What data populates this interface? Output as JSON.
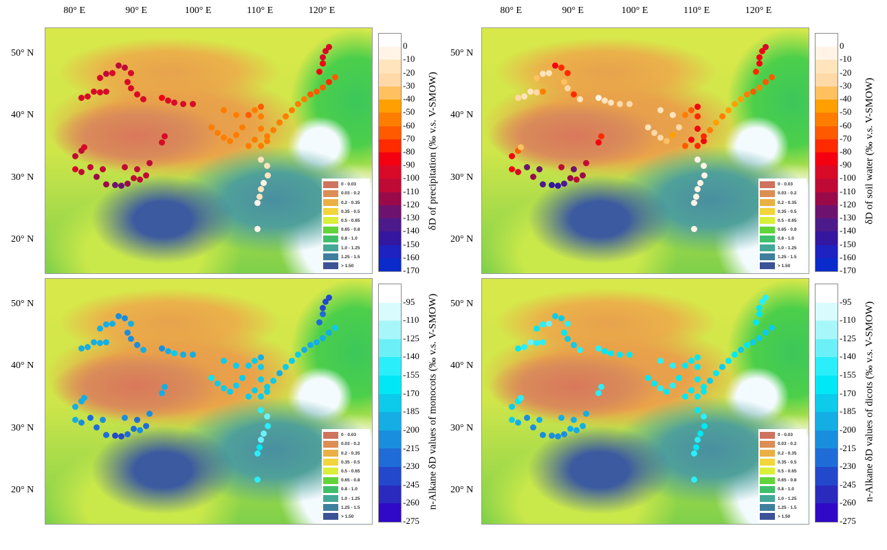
{
  "axes": {
    "lon_labels": [
      "80° E",
      "90° E",
      "100° E",
      "110° E",
      "120° E"
    ],
    "lon_values": [
      80,
      90,
      100,
      110,
      120
    ],
    "lat_labels": [
      "50° N",
      "40° N",
      "30° N",
      "20° N"
    ],
    "lat_values": [
      50,
      40,
      30,
      20
    ]
  },
  "legend": {
    "items": [
      "0 - 0.03",
      "0.03 - 0.2",
      "0.2 - 0.35",
      "0.35 - 0.5",
      "0.5 - 0.65",
      "0.65 - 0.8",
      "0.8 - 1.0",
      "1.0 - 1.25",
      "1.25 - 1.5",
      "> 1.50"
    ],
    "colors": [
      "#cf735e",
      "#dc8e55",
      "#eab044",
      "#f3d43a",
      "#d9ef38",
      "#62d43a",
      "#3fbf6a",
      "#44a896",
      "#3f7f9d",
      "#3b5296"
    ]
  },
  "panels": [
    {
      "colorbar_label": "δD of precipitation (‰ v.s. V-SMOW)",
      "ticks": [
        "0",
        "-10",
        "-20",
        "-30",
        "-40",
        "-50",
        "-60",
        "-70",
        "-80",
        "-90",
        "-100",
        "-110",
        "-120",
        "-130",
        "-140",
        "-150",
        "-160",
        "-170"
      ],
      "min": -170,
      "max": 0,
      "palette": [
        "#ffffff",
        "#fff4e6",
        "#ffe4bc",
        "#ffd9a8",
        "#ffc060",
        "#ffa000",
        "#ff7d00",
        "#ff5a00",
        "#ff2a00",
        "#f50010",
        "#d80a28",
        "#c00a36",
        "#9a0a4a",
        "#6e1270",
        "#4c1a8a",
        "#3416a0",
        "#1d22c0",
        "#0a2acc"
      ]
    },
    {
      "colorbar_label": "δD of soil water (‰ v.s. V-SMOW)",
      "ticks": [
        "0",
        "-10",
        "-20",
        "-30",
        "-40",
        "-50",
        "-60",
        "-70",
        "-80",
        "-90",
        "-100",
        "-110",
        "-120",
        "-130",
        "-140",
        "-150",
        "-160",
        "-170"
      ],
      "min": -170,
      "max": 0,
      "palette": [
        "#ffffff",
        "#fff4e6",
        "#ffe4bc",
        "#ffd9a8",
        "#ffc060",
        "#ffa000",
        "#ff7d00",
        "#ff5a00",
        "#ff2a00",
        "#f50010",
        "#d80a28",
        "#c00a36",
        "#9a0a4a",
        "#6e1270",
        "#4c1a8a",
        "#3416a0",
        "#1d22c0",
        "#0a2acc"
      ]
    },
    {
      "colorbar_label": "n-Alkane δD values of monocots (‰ v.s. V-SMOW)",
      "ticks": [
        "-95",
        "-110",
        "-125",
        "-140",
        "-155",
        "-170",
        "-185",
        "-200",
        "-215",
        "-230",
        "-245",
        "-260",
        "-275"
      ],
      "min": -275,
      "max": -95,
      "palette": [
        "#ffffff",
        "#d8fbfd",
        "#a6f6fa",
        "#6cf0f8",
        "#2aeefa",
        "#00e8f6",
        "#0ccbeb",
        "#14aee4",
        "#1a8ede",
        "#1f6cd8",
        "#2448cc",
        "#2a2abf",
        "#3008c8"
      ]
    },
    {
      "colorbar_label": "n-Alkane δD values of dicots (‰ v.s. V-SMOW)",
      "ticks": [
        "-95",
        "-110",
        "-125",
        "-140",
        "-155",
        "-170",
        "-185",
        "-200",
        "-215",
        "-230",
        "-245",
        "-260",
        "-275"
      ],
      "min": -275,
      "max": -95,
      "palette": [
        "#ffffff",
        "#d8fbfd",
        "#a6f6fa",
        "#6cf0f8",
        "#2aeefa",
        "#00e8f6",
        "#0ccbeb",
        "#14aee4",
        "#1a8ede",
        "#1f6cd8",
        "#2448cc",
        "#2a2abf",
        "#3008c8"
      ]
    }
  ],
  "chart_data": {
    "type": "scatter",
    "x_label": "longitude",
    "y_label": "latitude",
    "xlim": [
      75,
      129
    ],
    "ylim": [
      15,
      54
    ],
    "fields": [
      "lon",
      "lat",
      "precipitation_dD",
      "soil_water_dD",
      "monocot_dD",
      "dicot_dD"
    ],
    "sites": [
      [
        81,
        43,
        -95,
        -30,
        -195,
        -170
      ],
      [
        82,
        43.2,
        -95,
        -20,
        -200,
        -150
      ],
      [
        83,
        44,
        -100,
        -15,
        -205,
        -140
      ],
      [
        84,
        43.8,
        -100,
        -25,
        -200,
        -150
      ],
      [
        85,
        44,
        -95,
        -60,
        -205,
        -160
      ],
      [
        84,
        46.2,
        -100,
        -40,
        -195,
        -165
      ],
      [
        85,
        46.8,
        -105,
        -20,
        -195,
        -150
      ],
      [
        86,
        47,
        -100,
        -15,
        -200,
        -145
      ],
      [
        87,
        48.2,
        -110,
        -90,
        -215,
        -185
      ],
      [
        88,
        47.8,
        -105,
        -80,
        -210,
        -180
      ],
      [
        89,
        47,
        -100,
        -75,
        -205,
        -160
      ],
      [
        88.5,
        45.5,
        -100,
        -40,
        -210,
        -175
      ],
      [
        89,
        44.5,
        -95,
        -30,
        -215,
        -180
      ],
      [
        90,
        43.5,
        -100,
        -80,
        -220,
        -190
      ],
      [
        91,
        42.8,
        -95,
        -20,
        -200,
        -160
      ],
      [
        94,
        43,
        -90,
        -10,
        -210,
        -150
      ],
      [
        95,
        42.5,
        -95,
        -15,
        -195,
        -170
      ],
      [
        96,
        42.2,
        -95,
        -20,
        -190,
        -175
      ],
      [
        97.5,
        42,
        -95,
        -25,
        -195,
        -175
      ],
      [
        99,
        42,
        -95,
        -30,
        -195,
        -175
      ],
      [
        80,
        31.5,
        -100,
        -90,
        -205,
        -185
      ],
      [
        81,
        31,
        -105,
        -95,
        -215,
        -200
      ],
      [
        82.5,
        31.8,
        -110,
        -130,
        -225,
        -215
      ],
      [
        83.5,
        30.3,
        -115,
        -120,
        -225,
        -215
      ],
      [
        84.5,
        31.5,
        -110,
        -130,
        -220,
        -205
      ],
      [
        85,
        29,
        -120,
        -140,
        -235,
        -220
      ],
      [
        86.5,
        28.9,
        -125,
        -150,
        -245,
        -215
      ],
      [
        87.5,
        28.8,
        -125,
        -150,
        -240,
        -210
      ],
      [
        88.5,
        29.1,
        -120,
        -140,
        -235,
        -210
      ],
      [
        89.5,
        30,
        -110,
        -120,
        -225,
        -200
      ],
      [
        90.5,
        29.8,
        -105,
        -110,
        -220,
        -200
      ],
      [
        91.5,
        30.5,
        -110,
        -120,
        -225,
        -205
      ],
      [
        92,
        32.5,
        -105,
        -110,
        -215,
        -195
      ],
      [
        90,
        31.5,
        -110,
        -130,
        -225,
        -205
      ],
      [
        88,
        31.8,
        -110,
        -110,
        -220,
        -200
      ],
      [
        80,
        33.6,
        -105,
        -90,
        -200,
        -185
      ],
      [
        81,
        34.5,
        -105,
        -70,
        -195,
        -170
      ],
      [
        81.5,
        35,
        -100,
        -40,
        -195,
        -160
      ],
      [
        94,
        35.8,
        -100,
        -90,
        -200,
        -150
      ],
      [
        94.5,
        36.8,
        -100,
        -80,
        -200,
        -155
      ],
      [
        102,
        38.2,
        -60,
        -20,
        -175,
        -165
      ],
      [
        103,
        37.3,
        -55,
        -25,
        -180,
        -170
      ],
      [
        104,
        36.5,
        -55,
        -30,
        -180,
        -160
      ],
      [
        105,
        36,
        -60,
        -40,
        -185,
        -170
      ],
      [
        106,
        37,
        -60,
        -50,
        -185,
        -160
      ],
      [
        107,
        38.2,
        -55,
        -30,
        -180,
        -165
      ],
      [
        108,
        40.2,
        -65,
        -60,
        -185,
        -170
      ],
      [
        109,
        41,
        -60,
        -70,
        -190,
        -175
      ],
      [
        110,
        41.5,
        -65,
        -90,
        -195,
        -175
      ],
      [
        110,
        40,
        -60,
        -80,
        -190,
        -170
      ],
      [
        110,
        38,
        -55,
        -85,
        -185,
        -170
      ],
      [
        109,
        36.2,
        -60,
        -90,
        -185,
        -170
      ],
      [
        110,
        35.2,
        -55,
        -80,
        -190,
        -175
      ],
      [
        108,
        35.2,
        -60,
        -70,
        -190,
        -175
      ],
      [
        106,
        40.2,
        -55,
        -20,
        -185,
        -160
      ],
      [
        104,
        41,
        -55,
        -15,
        -180,
        -160
      ],
      [
        111,
        36,
        -55,
        -90,
        -190,
        -175
      ],
      [
        111,
        36.8,
        -55,
        -80,
        -190,
        -175
      ],
      [
        112,
        37.8,
        -55,
        -60,
        -190,
        -180
      ],
      [
        113,
        39,
        -55,
        -50,
        -195,
        -170
      ],
      [
        114,
        40,
        -55,
        -60,
        -190,
        -180
      ],
      [
        115,
        41,
        -55,
        -50,
        -190,
        -175
      ],
      [
        116,
        42,
        -60,
        -45,
        -190,
        -170
      ],
      [
        117,
        42.8,
        -60,
        -50,
        -195,
        -180
      ],
      [
        118,
        43.5,
        -65,
        -60,
        -195,
        -175
      ],
      [
        119,
        44,
        -70,
        -65,
        -195,
        -180
      ],
      [
        120,
        44.6,
        -70,
        -60,
        -195,
        -185
      ],
      [
        121,
        45.5,
        -75,
        -70,
        -195,
        -180
      ],
      [
        122,
        46.3,
        -70,
        -70,
        -190,
        -180
      ],
      [
        119.5,
        47.2,
        -85,
        -80,
        -230,
        -170
      ],
      [
        120,
        48.5,
        -90,
        -90,
        -235,
        -175
      ],
      [
        120,
        49.5,
        -95,
        -90,
        -240,
        -170
      ],
      [
        120.5,
        50.5,
        -95,
        -90,
        -245,
        -150
      ],
      [
        121,
        51.2,
        -100,
        -95,
        -245,
        -160
      ],
      [
        110,
        33,
        -15,
        -10,
        -155,
        -165
      ],
      [
        111,
        32,
        -20,
        -10,
        -145,
        -160
      ],
      [
        111.2,
        30.5,
        -15,
        -10,
        -150,
        -170
      ],
      [
        110.5,
        29.3,
        -10,
        -10,
        -140,
        -165
      ],
      [
        110,
        28.2,
        -15,
        -10,
        -145,
        -160
      ],
      [
        109.8,
        27,
        -15,
        -10,
        -170,
        -165
      ],
      [
        109.5,
        26,
        -10,
        -10,
        -160,
        -160
      ],
      [
        109.5,
        21.8,
        -10,
        -10,
        -150,
        -160
      ]
    ]
  }
}
